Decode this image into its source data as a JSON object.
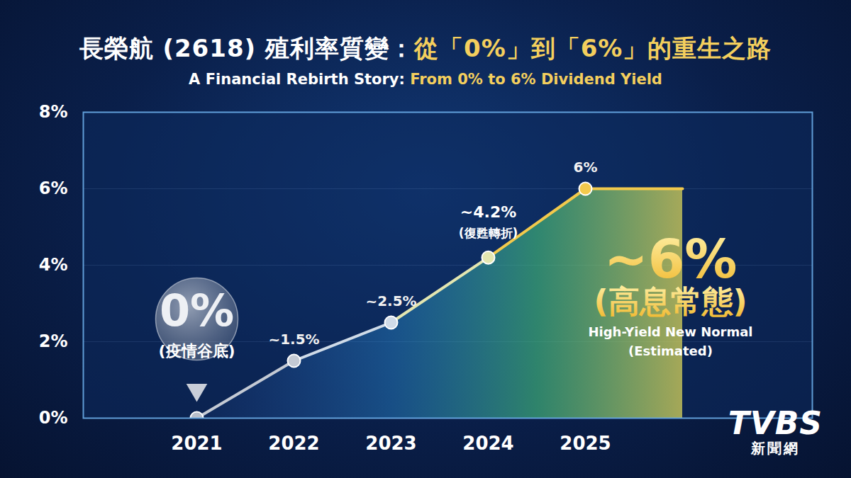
{
  "chart_data": {
    "type": "line",
    "title": "長榮航 (2618) 殖利率質變：從「0%」到「6%」的重生之路",
    "subtitle": "A Financial Rebirth Story: From 0% to 6% Dividend Yield",
    "categories": [
      "2021",
      "2022",
      "2023",
      "2024",
      "2025",
      null
    ],
    "values": [
      0,
      1.5,
      2.5,
      4.2,
      6,
      6
    ],
    "value_labels": [
      "0%",
      "~1.5%",
      "~2.5%",
      "~4.2%",
      "6%",
      null
    ],
    "point_notes": [
      "(疫情谷底)",
      null,
      null,
      "(復甦轉折)",
      null,
      null
    ],
    "colors": [
      "#b9bfca",
      "#c4cad4",
      "#cfdbe8",
      "#e3e6b0",
      "#f2c94c",
      "#f2c94c"
    ],
    "marker": "circle",
    "data_labels": true,
    "ylim": [
      0,
      8
    ],
    "yticks": [
      {
        "value": 0,
        "label": "0%"
      },
      {
        "value": 2,
        "label": "2%"
      },
      {
        "value": 4,
        "label": "4%"
      },
      {
        "value": 6,
        "label": "6%"
      },
      {
        "value": 8,
        "label": "8%"
      }
    ],
    "grid": true,
    "annotations": [
      "~6%",
      "(高息常態)",
      "High-Yield New Normal",
      "(Estimated)"
    ],
    "watermark": [
      "TVBS",
      "新聞網"
    ]
  }
}
